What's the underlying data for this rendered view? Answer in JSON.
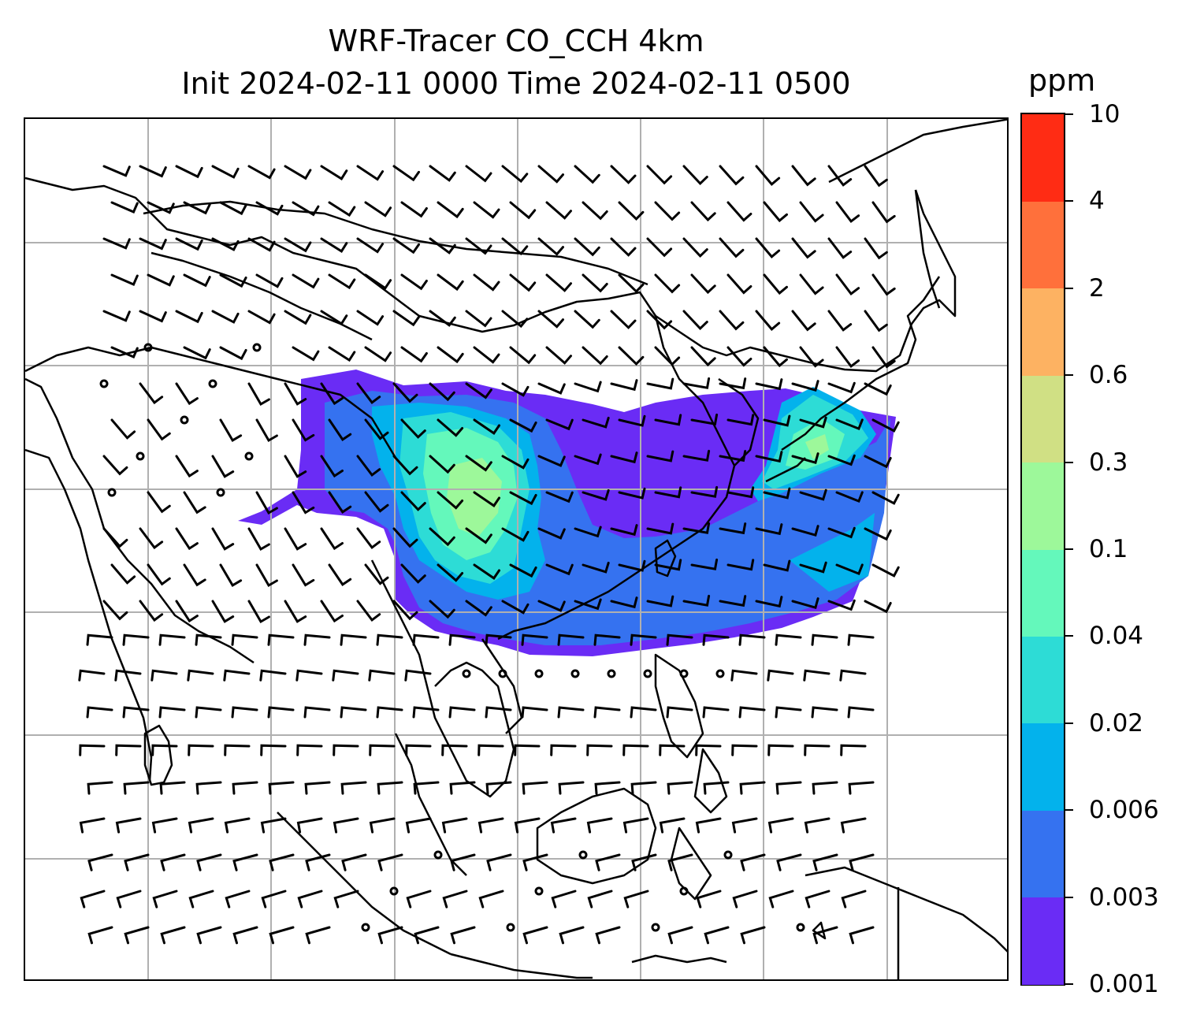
{
  "title": {
    "line1": "WRF-Tracer CO_CCH 4km",
    "line2": "Init 2024-02-11 0000 Time 2024-02-11 0500"
  },
  "colorbar": {
    "unit": "ppm",
    "levels": [
      "0.001",
      "0.003",
      "0.006",
      "0.02",
      "0.04",
      "0.1",
      "0.3",
      "0.6",
      "2",
      "4",
      "10"
    ],
    "colors": [
      "#6a2cf5",
      "#3572f0",
      "#03b2ec",
      "#2ddcd6",
      "#64f8bb",
      "#9df89a",
      "#d0e084",
      "#fdb262",
      "#ff703b",
      "#ff2c14"
    ]
  },
  "map": {
    "coastline_color": "#000000",
    "gridline_color": "#b0b0b0",
    "wind_barb_color": "#000000",
    "plume_levels_drawn": [
      "0.001",
      "0.003",
      "0.006",
      "0.02",
      "0.04",
      "0.1"
    ]
  }
}
